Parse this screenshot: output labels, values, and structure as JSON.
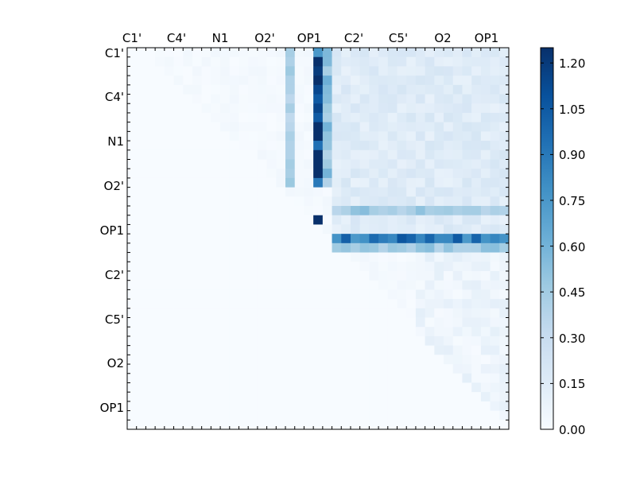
{
  "chart_data": {
    "type": "heatmap",
    "title": "",
    "xlabel": "",
    "ylabel": "",
    "x_tick_labels": [
      "C1'",
      "C4'",
      "N1",
      "O2'",
      "OP1",
      "C2'",
      "C5'",
      "O2",
      "OP1"
    ],
    "y_tick_labels": [
      "C1'",
      "C4'",
      "N1",
      "O2'",
      "OP1",
      "C2'",
      "C5'",
      "O2",
      "OP1"
    ],
    "grid_size": [
      41,
      41
    ],
    "colormap": [
      "#f7fbff",
      "#deebf7",
      "#c6dbef",
      "#9ecae1",
      "#6baed6",
      "#4292c6",
      "#2171b5",
      "#08519c",
      "#08306b"
    ],
    "value_range": [
      0,
      1.25
    ],
    "colorbar_ticks": [
      "0.00",
      "0.15",
      "0.30",
      "0.45",
      "0.60",
      "0.75",
      "0.90",
      "1.05",
      "1.20"
    ],
    "colorbar_tick_values": [
      0,
      0.15,
      0.3,
      0.45,
      0.6,
      0.75,
      0.9,
      1.05,
      1.2
    ],
    "cells": {
      "upper_region_background": 0.04,
      "right_block_rows": [
        0,
        20
      ],
      "right_block_cols": [
        22,
        40
      ],
      "right_block_base": 0.15,
      "column_bands": [
        {
          "col": 17,
          "rows": [
            0,
            14
          ],
          "value": 0.4
        },
        {
          "col": 20,
          "rows": [
            0,
            14
          ],
          "value": 1.1
        },
        {
          "col": 21,
          "rows": [
            0,
            14
          ],
          "value": 0.5
        }
      ],
      "row_bands": [
        {
          "row": 17,
          "cols": [
            22,
            40
          ],
          "value": 0.45
        },
        {
          "row": 20,
          "cols": [
            22,
            40
          ],
          "value": 0.9
        },
        {
          "row": 21,
          "cols": [
            22,
            40
          ],
          "value": 0.45
        }
      ],
      "peaks": [
        {
          "row": 0,
          "col": 20,
          "value": 0.75
        },
        {
          "row": 6,
          "col": 20,
          "value": 1.15
        },
        {
          "row": 8,
          "col": 20,
          "value": 1.25
        },
        {
          "row": 12,
          "col": 20,
          "value": 1.25
        },
        {
          "row": 18,
          "col": 20,
          "value": 1.25
        },
        {
          "row": 20,
          "col": 35,
          "value": 1.05
        }
      ]
    }
  }
}
